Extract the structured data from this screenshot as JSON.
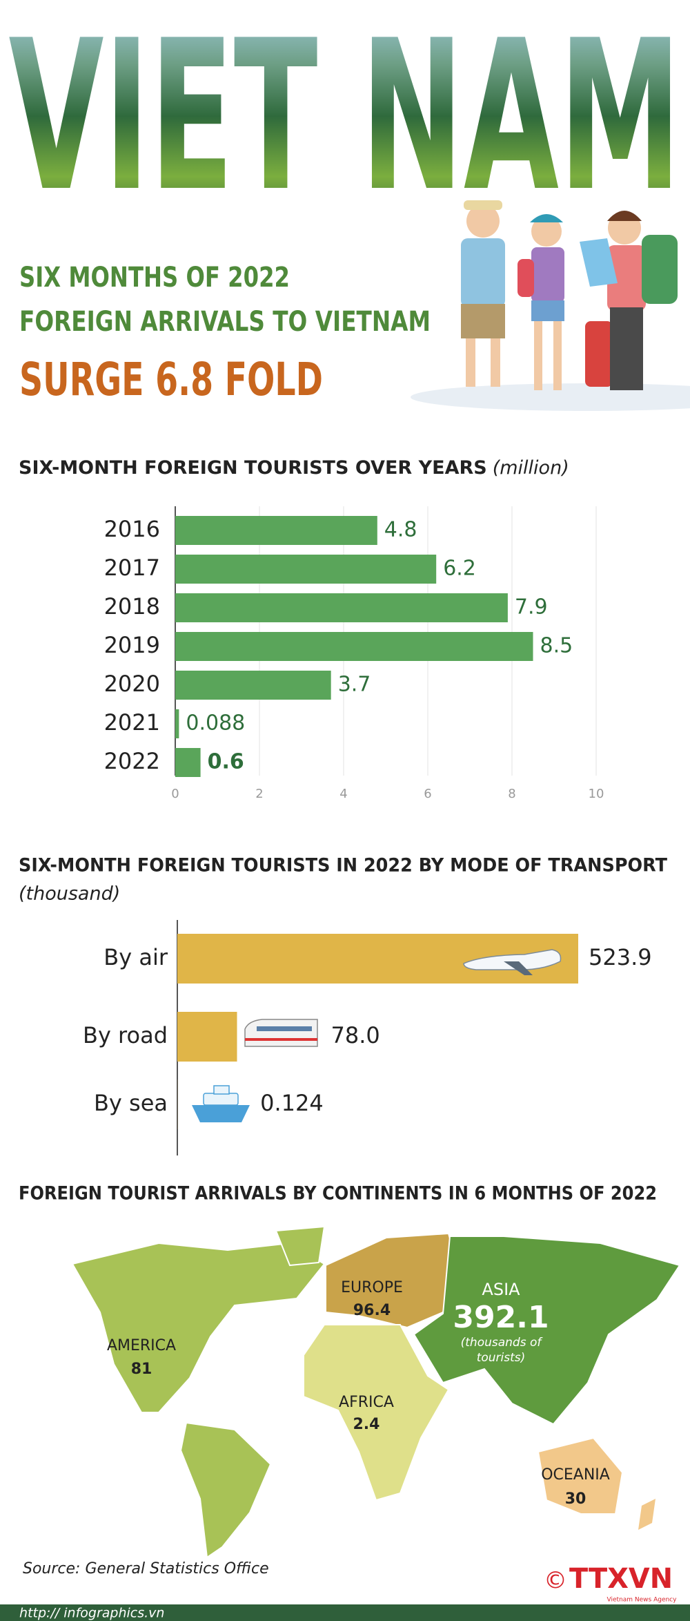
{
  "header": {
    "banner": "VIET NAM",
    "line1": "SIX MONTHS OF 2022",
    "line2": "FOREIGN ARRIVALS TO VIETNAM",
    "line3": "SURGE 6.8 FOLD"
  },
  "chart_data": [
    {
      "type": "bar",
      "orientation": "horizontal",
      "title": "SIX-MONTH FOREIGN TOURISTS OVER YEARS",
      "unit": "(million)",
      "categories": [
        "2016",
        "2017",
        "2018",
        "2019",
        "2020",
        "2021",
        "2022"
      ],
      "values": [
        4.8,
        6.2,
        7.9,
        8.5,
        3.7,
        0.088,
        0.6
      ],
      "color": "#5aa55a",
      "xlim": [
        0,
        10
      ],
      "xticks": [
        0,
        2,
        4,
        6,
        8,
        10
      ],
      "grid": true
    },
    {
      "type": "bar",
      "orientation": "horizontal",
      "title": "SIX-MONTH FOREIGN TOURISTS IN 2022 BY MODE OF TRANSPORT",
      "unit": "(thousand)",
      "categories": [
        "By air",
        "By road",
        "By sea"
      ],
      "values": [
        523.9,
        78.0,
        0.124
      ],
      "value_labels": [
        "523.9",
        "78.0",
        "0.124"
      ],
      "color": "#e0b548"
    },
    {
      "type": "map",
      "title": "FOREIGN TOURIST ARRIVALS BY CONTINENTS IN 6 MONTHS OF 2022",
      "categories": [
        "AMERICA",
        "EUROPE",
        "ASIA",
        "AFRICA",
        "OCEANIA"
      ],
      "values": [
        81,
        96.4,
        392.1,
        2.4,
        30
      ],
      "note_lines": [
        "(thousands of",
        "tourists)"
      ]
    }
  ],
  "footer": {
    "source": "Source: General Statistics Office",
    "url": "http:// infographics.vn",
    "copyright": "©",
    "logo": "TTXVN",
    "agency": "Vietnam News Agency"
  }
}
